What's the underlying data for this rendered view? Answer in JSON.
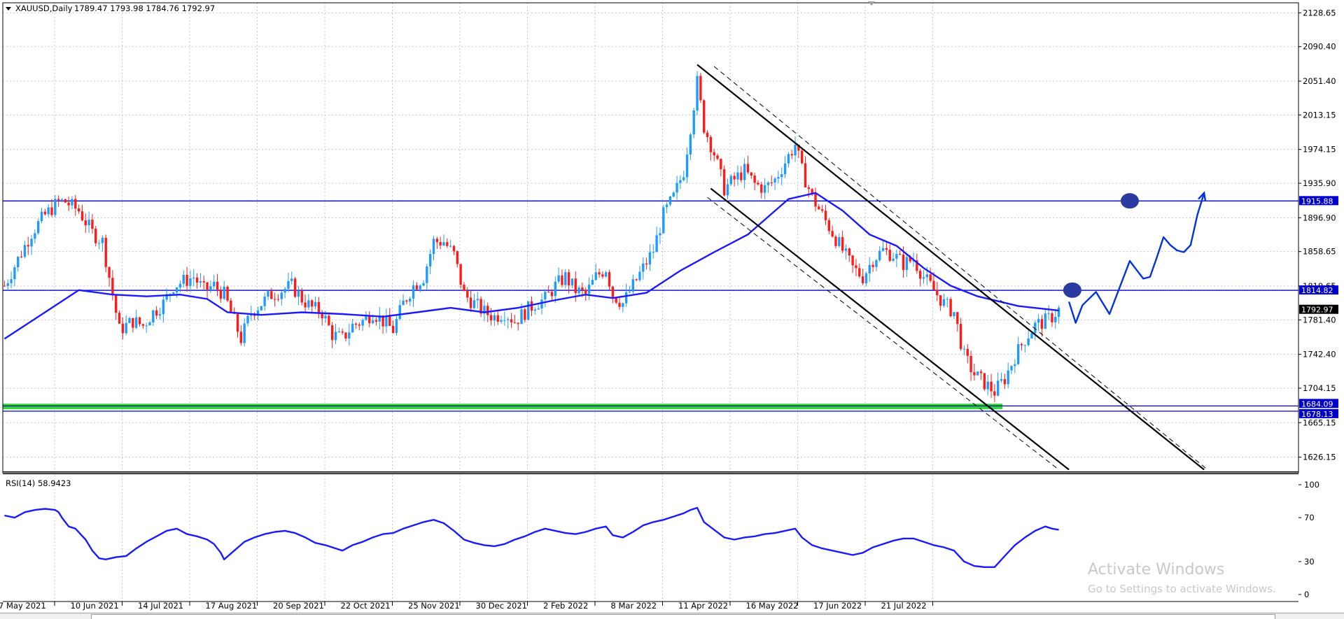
{
  "header": {
    "symbol": "XAUUSD,Daily",
    "ohlc": "1789.47 1793.98 1784.76 1792.97"
  },
  "chart_data": {
    "type": "candlestick",
    "symbol": "XAUUSD",
    "timeframe": "Daily",
    "ylim": [
      1610,
      2140
    ],
    "price_ticks": [
      "2128.65",
      "2090.40",
      "2051.40",
      "2013.15",
      "1974.15",
      "1935.90",
      "1896.90",
      "1858.65",
      "1819.65",
      "1781.40",
      "1742.40",
      "1704.15",
      "1665.15",
      "1626.15"
    ],
    "x_labels": [
      "7 May 2021",
      "10 Jun 2021",
      "14 Jul 2021",
      "17 Aug 2021",
      "20 Sep 2021",
      "22 Oct 2021",
      "25 Nov 2021",
      "30 Dec 2021",
      "2 Feb 2022",
      "8 Mar 2022",
      "11 Apr 2022",
      "16 May 2022",
      "17 Jun 2022",
      "21 Jul 2022"
    ],
    "last_price": "1792.97",
    "last_price_value": 1792.97,
    "close_path": [
      [
        0,
        1820
      ],
      [
        4,
        1850
      ],
      [
        8,
        1880
      ],
      [
        12,
        1900
      ],
      [
        16,
        1915
      ],
      [
        18,
        1915
      ],
      [
        22,
        1905
      ],
      [
        26,
        1880
      ],
      [
        29,
        1870
      ],
      [
        31,
        1830
      ],
      [
        34,
        1770
      ],
      [
        38,
        1780
      ],
      [
        41,
        1775
      ],
      [
        44,
        1790
      ],
      [
        47,
        1800
      ],
      [
        50,
        1820
      ],
      [
        53,
        1825
      ],
      [
        56,
        1830
      ],
      [
        59,
        1815
      ],
      [
        62,
        1820
      ],
      [
        65,
        1810
      ],
      [
        67,
        1790
      ],
      [
        69,
        1770
      ],
      [
        70,
        1760
      ],
      [
        73,
        1790
      ],
      [
        76,
        1800
      ],
      [
        79,
        1810
      ],
      [
        82,
        1815
      ],
      [
        85,
        1820
      ],
      [
        88,
        1805
      ],
      [
        91,
        1795
      ],
      [
        94,
        1790
      ],
      [
        97,
        1765
      ],
      [
        100,
        1760
      ],
      [
        103,
        1775
      ],
      [
        106,
        1780
      ],
      [
        109,
        1790
      ],
      [
        112,
        1780
      ],
      [
        115,
        1770
      ],
      [
        118,
        1800
      ],
      [
        121,
        1820
      ],
      [
        124,
        1830
      ],
      [
        127,
        1870
      ],
      [
        130,
        1870
      ],
      [
        133,
        1855
      ],
      [
        136,
        1810
      ],
      [
        139,
        1800
      ],
      [
        142,
        1790
      ],
      [
        145,
        1785
      ],
      [
        148,
        1790
      ],
      [
        151,
        1780
      ],
      [
        154,
        1790
      ],
      [
        157,
        1800
      ],
      [
        160,
        1805
      ],
      [
        163,
        1820
      ],
      [
        166,
        1830
      ],
      [
        169,
        1815
      ],
      [
        172,
        1810
      ],
      [
        175,
        1830
      ],
      [
        178,
        1840
      ],
      [
        180,
        1810
      ],
      [
        183,
        1800
      ],
      [
        186,
        1820
      ],
      [
        189,
        1840
      ],
      [
        192,
        1860
      ],
      [
        195,
        1900
      ],
      [
        198,
        1920
      ],
      [
        201,
        1950
      ],
      [
        203,
        2000
      ],
      [
        205,
        2050
      ],
      [
        207,
        2000
      ],
      [
        210,
        1970
      ],
      [
        213,
        1930
      ],
      [
        216,
        1940
      ],
      [
        219,
        1950
      ],
      [
        222,
        1935
      ],
      [
        225,
        1930
      ],
      [
        228,
        1940
      ],
      [
        231,
        1960
      ],
      [
        234,
        1980
      ],
      [
        236,
        1950
      ],
      [
        239,
        1920
      ],
      [
        242,
        1900
      ],
      [
        245,
        1880
      ],
      [
        248,
        1860
      ],
      [
        251,
        1840
      ],
      [
        254,
        1830
      ],
      [
        257,
        1850
      ],
      [
        260,
        1860
      ],
      [
        263,
        1855
      ],
      [
        266,
        1845
      ],
      [
        269,
        1850
      ],
      [
        272,
        1830
      ],
      [
        275,
        1815
      ],
      [
        278,
        1800
      ],
      [
        281,
        1790
      ],
      [
        284,
        1740
      ],
      [
        287,
        1720
      ],
      [
        290,
        1710
      ],
      [
        293,
        1700
      ],
      [
        296,
        1715
      ],
      [
        299,
        1740
      ],
      [
        302,
        1760
      ],
      [
        305,
        1775
      ],
      [
        308,
        1780
      ],
      [
        310,
        1785
      ],
      [
        312,
        1792.97
      ]
    ],
    "indicators": [
      {
        "type": "moving-average",
        "color": "#1a1aff",
        "points": [
          [
            0,
            1760
          ],
          [
            12,
            1790
          ],
          [
            22,
            1815
          ],
          [
            32,
            1810
          ],
          [
            42,
            1808
          ],
          [
            52,
            1810
          ],
          [
            60,
            1805
          ],
          [
            66,
            1790
          ],
          [
            76,
            1787
          ],
          [
            88,
            1790
          ],
          [
            100,
            1788
          ],
          [
            112,
            1785
          ],
          [
            122,
            1790
          ],
          [
            132,
            1795
          ],
          [
            142,
            1790
          ],
          [
            152,
            1795
          ],
          [
            162,
            1803
          ],
          [
            172,
            1810
          ],
          [
            180,
            1806
          ],
          [
            190,
            1812
          ],
          [
            200,
            1837
          ],
          [
            210,
            1858
          ],
          [
            220,
            1878
          ],
          [
            226,
            1898
          ],
          [
            232,
            1918
          ],
          [
            240,
            1925
          ],
          [
            248,
            1905
          ],
          [
            256,
            1878
          ],
          [
            264,
            1865
          ],
          [
            272,
            1840
          ],
          [
            280,
            1820
          ],
          [
            288,
            1808
          ],
          [
            300,
            1797
          ],
          [
            312,
            1792
          ]
        ]
      }
    ],
    "horizontal_levels": [
      {
        "value": 1915.88,
        "label": "1915.88",
        "color": "#0000cc"
      },
      {
        "value": 1814.82,
        "label": "1814.82",
        "color": "#0000cc"
      },
      {
        "value": 1684.09,
        "label": "1684.09",
        "color": "#0000cc"
      },
      {
        "value": 1678.13,
        "label": "1678.13",
        "color": "#0000cc"
      }
    ],
    "support_zone": {
      "from": 1680.5,
      "to": 1686.5,
      "color": "#22dd22"
    },
    "trend_lines": [
      {
        "x1": 205,
        "y1": 2070,
        "x2": 355,
        "y2": 1612,
        "color": "#000000",
        "style": "solid"
      },
      {
        "x1": 209,
        "y1": 1930,
        "x2": 315,
        "y2": 1612,
        "color": "#000000",
        "style": "solid"
      },
      {
        "x1": 210,
        "y1": 2068,
        "x2": 356,
        "y2": 1612,
        "color": "#000000",
        "style": "dashed"
      },
      {
        "x1": 208,
        "y1": 1920,
        "x2": 312,
        "y2": 1612,
        "color": "#000000",
        "style": "dashed"
      }
    ],
    "projection": {
      "color": "#0033dd",
      "points": [
        [
          315,
          1802
        ],
        [
          317,
          1778
        ],
        [
          319,
          1798
        ],
        [
          323,
          1813
        ],
        [
          327,
          1788
        ],
        [
          331,
          1828
        ],
        [
          333,
          1848
        ],
        [
          335,
          1838
        ],
        [
          337,
          1828
        ],
        [
          339,
          1830
        ],
        [
          341,
          1852
        ],
        [
          343,
          1875
        ],
        [
          345,
          1866
        ],
        [
          347,
          1860
        ],
        [
          349,
          1858
        ],
        [
          351,
          1866
        ],
        [
          353,
          1900
        ],
        [
          355,
          1925
        ]
      ],
      "markers": [
        [
          316,
          1815
        ],
        [
          333,
          1916
        ]
      ]
    },
    "rsi": {
      "label": "RSI(14) 58.9423",
      "period": 14,
      "last": 58.9423,
      "ylim": [
        0,
        100
      ],
      "levels": [
        "100",
        "70",
        "30",
        "0"
      ],
      "values": [
        [
          0,
          72
        ],
        [
          3,
          70
        ],
        [
          6,
          75
        ],
        [
          9,
          77
        ],
        [
          12,
          78
        ],
        [
          15,
          77
        ],
        [
          16,
          75
        ],
        [
          17,
          70
        ],
        [
          19,
          62
        ],
        [
          21,
          60
        ],
        [
          24,
          50
        ],
        [
          26,
          40
        ],
        [
          28,
          33
        ],
        [
          30,
          32
        ],
        [
          33,
          34
        ],
        [
          36,
          35
        ],
        [
          39,
          42
        ],
        [
          42,
          48
        ],
        [
          45,
          53
        ],
        [
          48,
          58
        ],
        [
          51,
          60
        ],
        [
          54,
          55
        ],
        [
          57,
          53
        ],
        [
          60,
          50
        ],
        [
          62,
          46
        ],
        [
          64,
          38
        ],
        [
          65,
          32
        ],
        [
          68,
          40
        ],
        [
          71,
          48
        ],
        [
          74,
          52
        ],
        [
          77,
          55
        ],
        [
          80,
          57
        ],
        [
          83,
          58
        ],
        [
          86,
          56
        ],
        [
          89,
          52
        ],
        [
          92,
          47
        ],
        [
          95,
          45
        ],
        [
          98,
          42
        ],
        [
          100,
          40
        ],
        [
          103,
          45
        ],
        [
          106,
          48
        ],
        [
          109,
          52
        ],
        [
          112,
          55
        ],
        [
          115,
          56
        ],
        [
          118,
          60
        ],
        [
          121,
          63
        ],
        [
          124,
          66
        ],
        [
          127,
          68
        ],
        [
          130,
          65
        ],
        [
          133,
          58
        ],
        [
          136,
          50
        ],
        [
          139,
          47
        ],
        [
          142,
          45
        ],
        [
          145,
          44
        ],
        [
          148,
          46
        ],
        [
          151,
          50
        ],
        [
          154,
          53
        ],
        [
          157,
          57
        ],
        [
          160,
          60
        ],
        [
          163,
          58
        ],
        [
          166,
          56
        ],
        [
          169,
          55
        ],
        [
          172,
          57
        ],
        [
          175,
          60
        ],
        [
          178,
          62
        ],
        [
          180,
          54
        ],
        [
          183,
          52
        ],
        [
          186,
          57
        ],
        [
          189,
          63
        ],
        [
          192,
          66
        ],
        [
          195,
          68
        ],
        [
          198,
          71
        ],
        [
          201,
          74
        ],
        [
          203,
          77
        ],
        [
          205,
          79
        ],
        [
          207,
          66
        ],
        [
          210,
          59
        ],
        [
          213,
          52
        ],
        [
          216,
          50
        ],
        [
          219,
          52
        ],
        [
          222,
          53
        ],
        [
          225,
          55
        ],
        [
          228,
          56
        ],
        [
          231,
          58
        ],
        [
          234,
          60
        ],
        [
          236,
          52
        ],
        [
          239,
          45
        ],
        [
          242,
          42
        ],
        [
          245,
          40
        ],
        [
          248,
          38
        ],
        [
          251,
          36
        ],
        [
          254,
          38
        ],
        [
          257,
          43
        ],
        [
          260,
          46
        ],
        [
          263,
          49
        ],
        [
          266,
          51
        ],
        [
          269,
          51
        ],
        [
          272,
          48
        ],
        [
          275,
          45
        ],
        [
          278,
          43
        ],
        [
          281,
          40
        ],
        [
          284,
          30
        ],
        [
          287,
          26
        ],
        [
          290,
          25
        ],
        [
          293,
          25
        ],
        [
          296,
          35
        ],
        [
          299,
          45
        ],
        [
          302,
          52
        ],
        [
          305,
          58
        ],
        [
          308,
          62
        ],
        [
          310,
          60
        ],
        [
          312,
          59
        ]
      ]
    }
  },
  "overlay": {
    "watermark_title": "Activate Windows",
    "watermark_sub": "Go to Settings to activate Windows."
  },
  "colors": {
    "bull": "#1e9bff",
    "bear": "#ff1a1a",
    "grid": "#c0c8d4",
    "ma": "#1a1aff",
    "rsi": "#1a1aff",
    "levels": "#0000cc",
    "zone": "#22dd22"
  }
}
